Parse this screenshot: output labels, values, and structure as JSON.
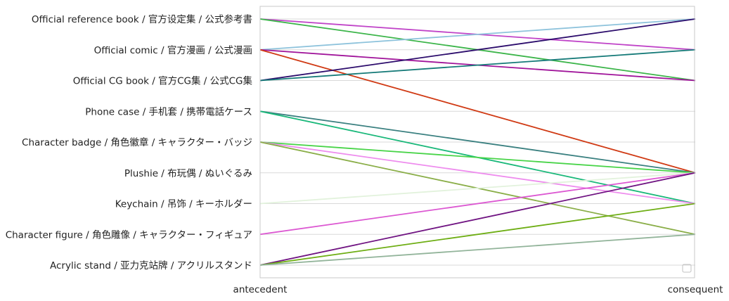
{
  "chart_data": {
    "type": "parallel-categories",
    "axes": [
      "antecedent",
      "consequent"
    ],
    "categories": [
      "Official reference book / 官方设定集 / 公式参考書",
      "Official comic / 官方漫画 / 公式漫画",
      "Official CG book / 官方CG集 / 公式CG集",
      "Phone case / 手机套 / 携帯電話ケース",
      "Character badge / 角色徽章 / キャラクター・バッジ",
      "Plushie / 布玩偶 / ぬいぐるみ",
      "Keychain / 吊饰 / キーホルダー",
      "Character figure / 角色雕像 / キャラクター・フィギュア",
      "Acrylic stand / 亚力克站牌 / アクリルスタンド"
    ],
    "links": [
      {
        "from": "Official reference book / 官方设定集 / 公式参考書",
        "to": "Official comic / 官方漫画 / 公式漫画",
        "color": "#c044c8"
      },
      {
        "from": "Official reference book / 官方设定集 / 公式参考書",
        "to": "Official CG book / 官方CG集 / 公式CG集",
        "color": "#3cb54a"
      },
      {
        "from": "Official comic / 官方漫画 / 公式漫画",
        "to": "Official reference book / 官方设定集 / 公式参考書",
        "color": "#8ec3dc"
      },
      {
        "from": "Official comic / 官方漫画 / 公式漫画",
        "to": "Official CG book / 官方CG集 / 公式CG集",
        "color": "#a0149a"
      },
      {
        "from": "Official comic / 官方漫画 / 公式漫画",
        "to": "Plushie / 布玩偶 / ぬいぐるみ",
        "color": "#d03a14"
      },
      {
        "from": "Official CG book / 官方CG集 / 公式CG集",
        "to": "Official reference book / 官方设定集 / 公式参考書",
        "color": "#2c0c6c"
      },
      {
        "from": "Official CG book / 官方CG集 / 公式CG集",
        "to": "Official comic / 官方漫画 / 公式漫画",
        "color": "#157a78"
      },
      {
        "from": "Phone case / 手机套 / 携帯電話ケース",
        "to": "Plushie / 布玩偶 / ぬいぐるみ",
        "color": "#3a8080"
      },
      {
        "from": "Phone case / 手机套 / 携帯電話ケース",
        "to": "Keychain / 吊饰 / キーホルダー",
        "color": "#1ab87a"
      },
      {
        "from": "Character badge / 角色徽章 / キャラクター・バッジ",
        "to": "Plushie / 布玩偶 / ぬいぐるみ",
        "color": "#48d448"
      },
      {
        "from": "Character badge / 角色徽章 / キャラクター・バッジ",
        "to": "Keychain / 吊饰 / キーホルダー",
        "color": "#ee8cee"
      },
      {
        "from": "Character badge / 角色徽章 / キャラクター・バッジ",
        "to": "Character figure / 角色雕像 / キャラクター・フィギュア",
        "color": "#8aae48"
      },
      {
        "from": "Keychain / 吊饰 / キーホルダー",
        "to": "Plushie / 布玩偶 / ぬいぐるみ",
        "color": "#e2f2dc"
      },
      {
        "from": "Character figure / 角色雕像 / キャラクター・フィギュア",
        "to": "Plushie / 布玩偶 / ぬいぐるみ",
        "color": "#dc58d2"
      },
      {
        "from": "Acrylic stand / 亚力克站牌 / アクリルスタンド",
        "to": "Plushie / 布玩偶 / ぬいぐるみ",
        "color": "#701482"
      },
      {
        "from": "Acrylic stand / 亚力克站牌 / アクリルスタンド",
        "to": "Keychain / 吊饰 / キーホルダー",
        "color": "#6eae14"
      },
      {
        "from": "Acrylic stand / 亚力克站牌 / アクリルスタンド",
        "to": "Character figure / 角色雕像 / キャラクター・フィギュア",
        "color": "#92b49a"
      }
    ],
    "grid": true,
    "gridColor": "#d9d9d9",
    "frameColor": "#c8c8c8",
    "textColor": "#222222"
  }
}
